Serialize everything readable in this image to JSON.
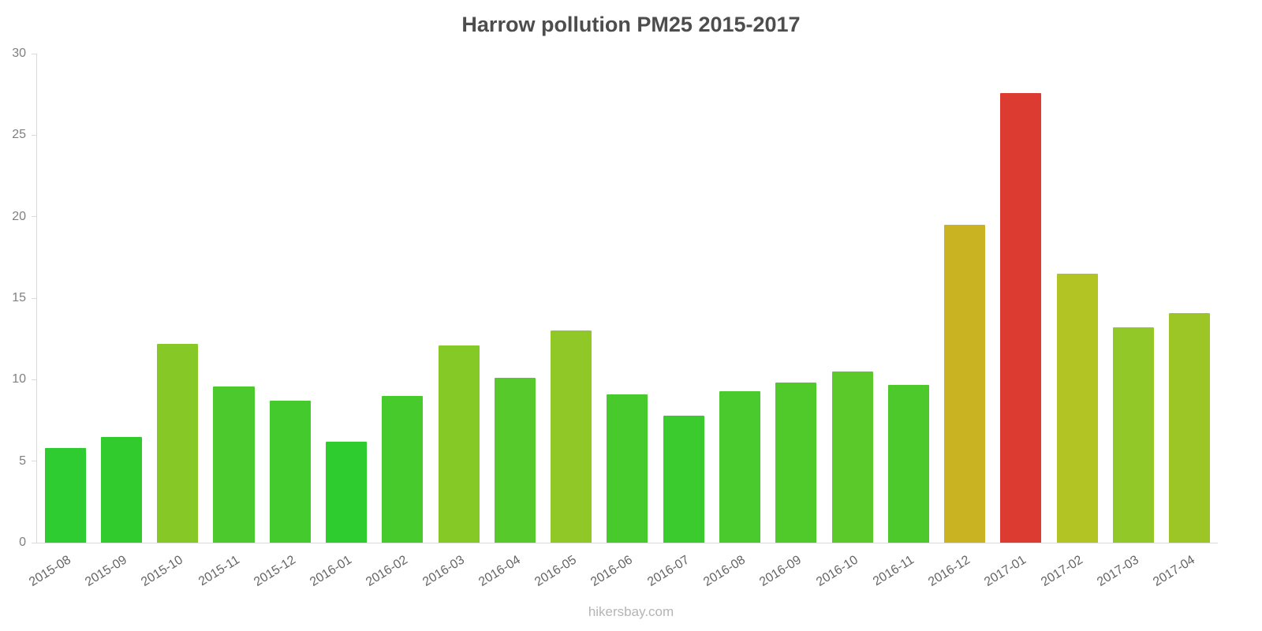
{
  "chart_data": {
    "type": "bar",
    "title": "Harrow pollution PM25 2015-2017",
    "xlabel": "",
    "ylabel": "",
    "ylim": [
      0,
      30
    ],
    "yticks": [
      0,
      5,
      10,
      15,
      20,
      25,
      30
    ],
    "grid": false,
    "legend_position": "none",
    "categories": [
      "2015-08",
      "2015-09",
      "2015-10",
      "2015-11",
      "2015-12",
      "2016-01",
      "2016-02",
      "2016-03",
      "2016-04",
      "2016-05",
      "2016-06",
      "2016-07",
      "2016-08",
      "2016-09",
      "2016-10",
      "2016-11",
      "2016-12",
      "2017-01",
      "2017-02",
      "2017-03",
      "2017-04"
    ],
    "values": [
      5.8,
      6.5,
      12.2,
      9.6,
      8.7,
      6.2,
      9.0,
      12.1,
      10.1,
      13.0,
      9.1,
      7.8,
      9.3,
      9.8,
      10.5,
      9.7,
      19.5,
      27.6,
      16.5,
      13.2,
      14.1
    ],
    "colors": [
      "#2ecc30",
      "#31cb2e",
      "#86c927",
      "#4cc92c",
      "#44ca2d",
      "#2fcc2f",
      "#47ca2c",
      "#85c927",
      "#57c92a",
      "#8fc827",
      "#48ca2c",
      "#3bcb2e",
      "#4aca2c",
      "#50c92b",
      "#5cc92a",
      "#4ec92b",
      "#c9b322",
      "#dc3b32",
      "#b2c424",
      "#92c827",
      "#9cc626"
    ]
  },
  "footer": {
    "watermark": "hikersbay.com"
  }
}
